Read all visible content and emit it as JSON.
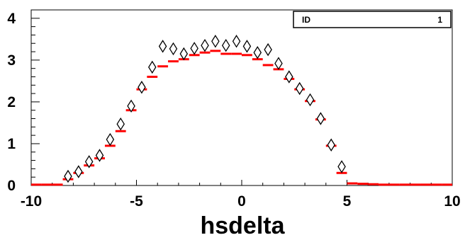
{
  "chart_data": {
    "type": "scatter",
    "title": "",
    "xlabel": "hsdelta",
    "ylabel": "",
    "xlim": [
      -10,
      10
    ],
    "ylim": [
      0,
      4.2
    ],
    "x_ticks": [
      -10,
      -5,
      0,
      5,
      10
    ],
    "y_ticks": [
      0,
      1,
      2,
      3,
      4
    ],
    "grid": false,
    "stats_box": {
      "label": "ID",
      "value": "1"
    },
    "bin_width": 0.5,
    "series": [
      {
        "style": "histogram-steps",
        "color": "#ff0000",
        "bin_centers": [
          -9.75,
          -9.25,
          -8.75,
          -8.25,
          -7.75,
          -7.25,
          -6.75,
          -6.25,
          -5.75,
          -5.25,
          -4.75,
          -4.25,
          -3.75,
          -3.25,
          -2.75,
          -2.25,
          -1.75,
          -1.25,
          -0.75,
          -0.25,
          0.25,
          0.75,
          1.25,
          1.75,
          2.25,
          2.75,
          3.25,
          3.75,
          4.25,
          4.75,
          5.25,
          5.75,
          6.25,
          6.75,
          7.25,
          7.75,
          8.25,
          8.75,
          9.25,
          9.75
        ],
        "values": [
          0.02,
          0.02,
          0.02,
          0.15,
          0.3,
          0.48,
          0.65,
          0.95,
          1.3,
          1.8,
          2.3,
          2.6,
          2.85,
          2.97,
          3.02,
          3.12,
          3.18,
          3.22,
          3.15,
          3.15,
          3.12,
          3.02,
          2.88,
          2.78,
          2.55,
          2.3,
          2.02,
          1.58,
          0.95,
          0.3,
          0.05,
          0.04,
          0.03,
          0.02,
          0.02,
          0.02,
          0.02,
          0.02,
          0.02,
          0.02
        ]
      },
      {
        "style": "diamond-markers",
        "color": "#000000",
        "x": [
          -8.25,
          -7.75,
          -7.25,
          -6.75,
          -6.25,
          -5.75,
          -5.25,
          -4.75,
          -4.25,
          -3.75,
          -3.25,
          -2.75,
          -2.25,
          -1.75,
          -1.25,
          -0.75,
          -0.25,
          0.25,
          0.75,
          1.25,
          1.75,
          2.25,
          2.75,
          3.25,
          3.75,
          4.25,
          4.75
        ],
        "y": [
          0.22,
          0.33,
          0.57,
          0.72,
          1.1,
          1.47,
          1.9,
          2.35,
          2.83,
          3.33,
          3.27,
          3.15,
          3.28,
          3.35,
          3.45,
          3.35,
          3.45,
          3.33,
          3.18,
          3.25,
          2.92,
          2.6,
          2.32,
          2.05,
          1.6,
          0.97,
          0.45
        ],
        "errors": [
          0.05,
          0.05,
          0.06,
          0.07,
          0.08,
          0.09,
          0.1,
          0.11,
          0.12,
          0.13,
          0.13,
          0.13,
          0.13,
          0.13,
          0.13,
          0.13,
          0.13,
          0.13,
          0.13,
          0.13,
          0.12,
          0.12,
          0.11,
          0.1,
          0.09,
          0.07,
          0.05
        ]
      }
    ]
  }
}
